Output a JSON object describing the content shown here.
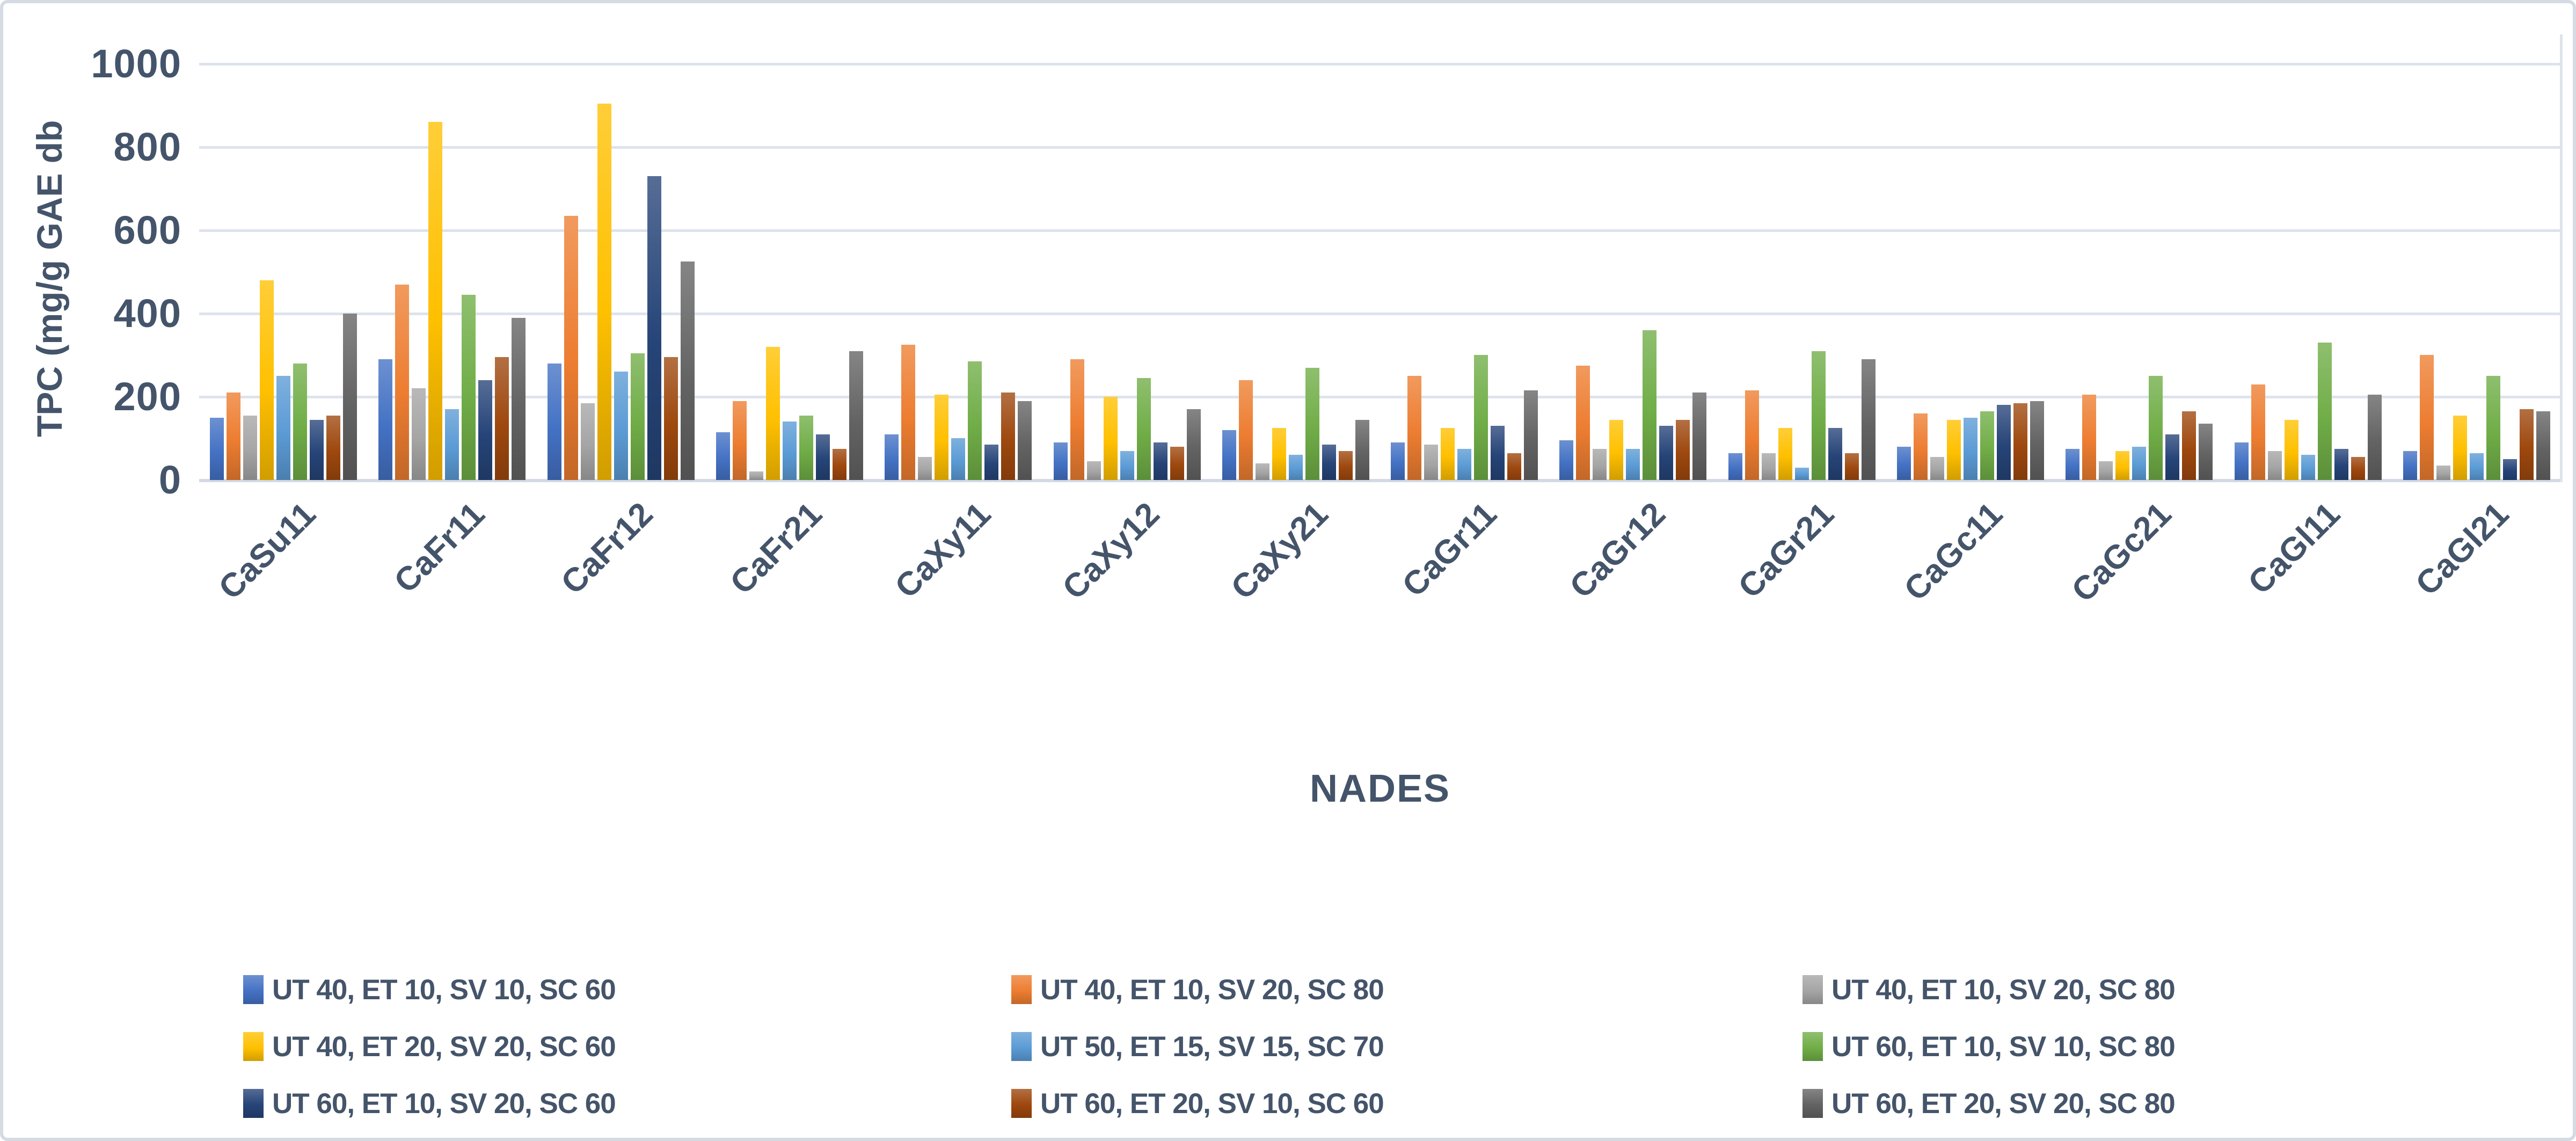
{
  "figure": {
    "text_color": "#44546A",
    "gridline_color": "#DEE3EC",
    "border_color": "#D5DAE3"
  },
  "chart_data": {
    "type": "bar",
    "title": "",
    "xlabel": "NADES",
    "ylabel": "TPC (mg/g GAE db",
    "ylim": [
      0,
      1000
    ],
    "yticks": [
      "0",
      "200",
      "400",
      "600",
      "800",
      "1000"
    ],
    "grid": true,
    "legend_position": "bottom",
    "legend_columns": 3,
    "categories": [
      "CaSu11",
      "CaFr11",
      "CaFr12",
      "CaFr21",
      "CaXy11",
      "CaXy12",
      "CaXy21",
      "CaGr11",
      "CaGr12",
      "CaGr21",
      "CaGc11",
      "CaGc21",
      "CaGl11",
      "CaGl21"
    ],
    "series": [
      {
        "name": "UT 40, ET 10, SV 10, SC 60",
        "color": "#4472C4",
        "values": [
          150,
          290,
          280,
          115,
          110,
          90,
          120,
          90,
          95,
          65,
          80,
          75,
          90,
          70
        ]
      },
      {
        "name": "UT 40, ET 10, SV 20, SC 80",
        "color": "#ED7D31",
        "values": [
          210,
          470,
          635,
          190,
          325,
          290,
          240,
          250,
          275,
          215,
          160,
          205,
          230,
          300
        ]
      },
      {
        "name": "UT 40, ET 10, SV 20, SC 80",
        "color": "#A5A5A5",
        "values": [
          155,
          220,
          185,
          20,
          55,
          45,
          40,
          85,
          75,
          65,
          55,
          45,
          70,
          35
        ]
      },
      {
        "name": "UT 40, ET 20, SV 20, SC 60",
        "color": "#FFC000",
        "values": [
          480,
          860,
          905,
          320,
          205,
          200,
          125,
          125,
          145,
          125,
          145,
          70,
          145,
          155
        ]
      },
      {
        "name": "UT 50, ET 15, SV 15, SC 70",
        "color": "#5B9BD5",
        "values": [
          250,
          170,
          260,
          140,
          100,
          70,
          60,
          75,
          75,
          30,
          150,
          80,
          60,
          65
        ]
      },
      {
        "name": "UT 60, ET 10, SV 10, SC 80",
        "color": "#70AD47",
        "values": [
          280,
          445,
          305,
          155,
          285,
          245,
          270,
          300,
          360,
          310,
          165,
          250,
          330,
          250
        ]
      },
      {
        "name": "UT 60, ET 10, SV 20, SC 60",
        "color": "#264478",
        "values": [
          145,
          240,
          730,
          110,
          85,
          90,
          85,
          130,
          130,
          125,
          180,
          110,
          75,
          50
        ]
      },
      {
        "name": "UT 60, ET 20, SV 10, SC 60",
        "color": "#9E480E",
        "values": [
          155,
          295,
          295,
          75,
          210,
          80,
          70,
          65,
          145,
          65,
          185,
          165,
          55,
          170
        ]
      },
      {
        "name": "UT 60, ET 20, SV 20, SC 80",
        "color": "#636363",
        "values": [
          400,
          390,
          525,
          310,
          190,
          170,
          145,
          215,
          210,
          290,
          190,
          135,
          205,
          165
        ]
      }
    ]
  }
}
